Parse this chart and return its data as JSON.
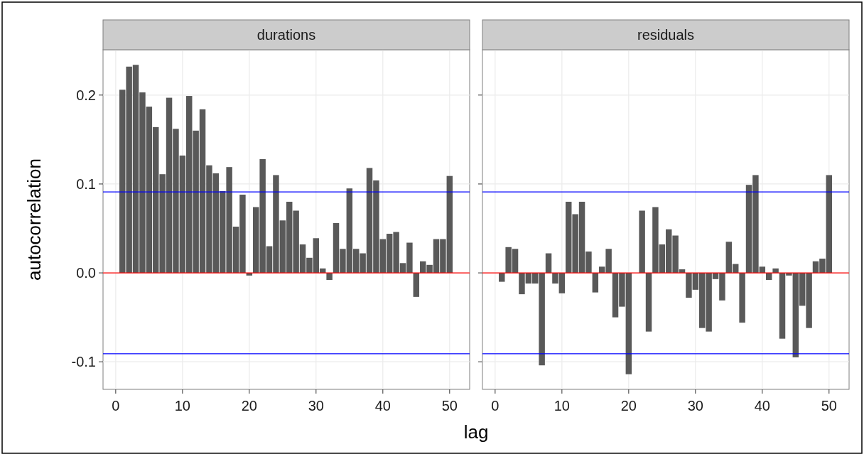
{
  "chart_data": [
    {
      "type": "bar",
      "title": "durations",
      "ylabel": "autocorrelation",
      "xlabel": "lag",
      "x": [
        1,
        2,
        3,
        4,
        5,
        6,
        7,
        8,
        9,
        10,
        11,
        12,
        13,
        14,
        15,
        16,
        17,
        18,
        19,
        20,
        21,
        22,
        23,
        24,
        25,
        26,
        27,
        28,
        29,
        30,
        31,
        32,
        33,
        34,
        35,
        36,
        37,
        38,
        39,
        40,
        41,
        42,
        43,
        44,
        45,
        46,
        47,
        48,
        49,
        50
      ],
      "values": [
        0.206,
        0.232,
        0.234,
        0.203,
        0.187,
        0.164,
        0.111,
        0.197,
        0.162,
        0.132,
        0.199,
        0.16,
        0.184,
        0.121,
        0.112,
        0.092,
        0.119,
        0.052,
        0.088,
        -0.003,
        0.074,
        0.128,
        0.03,
        0.11,
        0.059,
        0.08,
        0.07,
        0.032,
        0.017,
        0.039,
        0.005,
        -0.008,
        0.056,
        0.027,
        0.095,
        0.027,
        0.022,
        0.118,
        0.104,
        0.038,
        0.044,
        0.046,
        0.011,
        0.034,
        -0.027,
        0.013,
        0.009,
        0.038,
        0.038,
        0.109
      ],
      "color": "#595959",
      "xlim": [
        -1.9,
        53
      ],
      "ylim": [
        -0.131,
        0.251
      ],
      "xticks": [
        0,
        10,
        20,
        30,
        40,
        50
      ],
      "yticks": [
        {
          "value": -0.1,
          "label": "-0.1"
        },
        {
          "value": 0,
          "label": "0.0"
        },
        0.1,
        0.2
      ],
      "grid": true,
      "ref_lines": [
        {
          "axis": "y",
          "value": 0.091,
          "color": "#0000ff"
        },
        {
          "axis": "y",
          "value": -0.091,
          "color": "#0000ff"
        },
        {
          "axis": "y",
          "value": 0,
          "color": "#ff0000"
        }
      ]
    },
    {
      "type": "bar",
      "title": "residuals",
      "x": [
        1,
        2,
        3,
        4,
        5,
        6,
        7,
        8,
        9,
        10,
        11,
        12,
        13,
        14,
        15,
        16,
        17,
        18,
        19,
        20,
        21,
        22,
        23,
        24,
        25,
        26,
        27,
        28,
        29,
        30,
        31,
        32,
        33,
        34,
        35,
        36,
        37,
        38,
        39,
        40,
        41,
        42,
        43,
        44,
        45,
        46,
        47,
        48,
        49,
        50
      ],
      "values": [
        -0.01,
        0.029,
        0.027,
        -0.024,
        -0.012,
        -0.012,
        -0.104,
        0.022,
        -0.012,
        -0.023,
        0.08,
        0.066,
        0.08,
        0.024,
        -0.022,
        0.007,
        0.027,
        -0.05,
        -0.038,
        -0.114,
        null,
        0.07,
        -0.066,
        0.074,
        0.032,
        0.049,
        0.042,
        0.004,
        -0.028,
        -0.019,
        -0.062,
        -0.066,
        -0.007,
        -0.031,
        0.035,
        0.01,
        -0.056,
        0.099,
        0.11,
        0.007,
        -0.008,
        0.005,
        -0.074,
        -0.003,
        -0.095,
        -0.037,
        -0.062,
        0.013,
        0.016,
        0.11
      ],
      "color": "#595959",
      "xlim": [
        -1.9,
        53
      ],
      "ylim": [
        -0.131,
        0.251
      ],
      "xticks": [
        0,
        10,
        20,
        30,
        40,
        50
      ],
      "yticks": [
        {
          "value": -0.1,
          "label": null
        },
        {
          "value": 0,
          "label": null
        },
        {
          "value": 0.1,
          "label": null
        },
        {
          "value": 0.2,
          "label": null
        }
      ],
      "grid": true,
      "tick_labels": "x",
      "ref_lines": [
        {
          "axis": "y",
          "value": 0.091,
          "color": "#0000ff"
        },
        {
          "axis": "y",
          "value": -0.091,
          "color": "#0000ff"
        },
        {
          "axis": "y",
          "value": 0,
          "color": "#ff0000"
        }
      ]
    }
  ]
}
